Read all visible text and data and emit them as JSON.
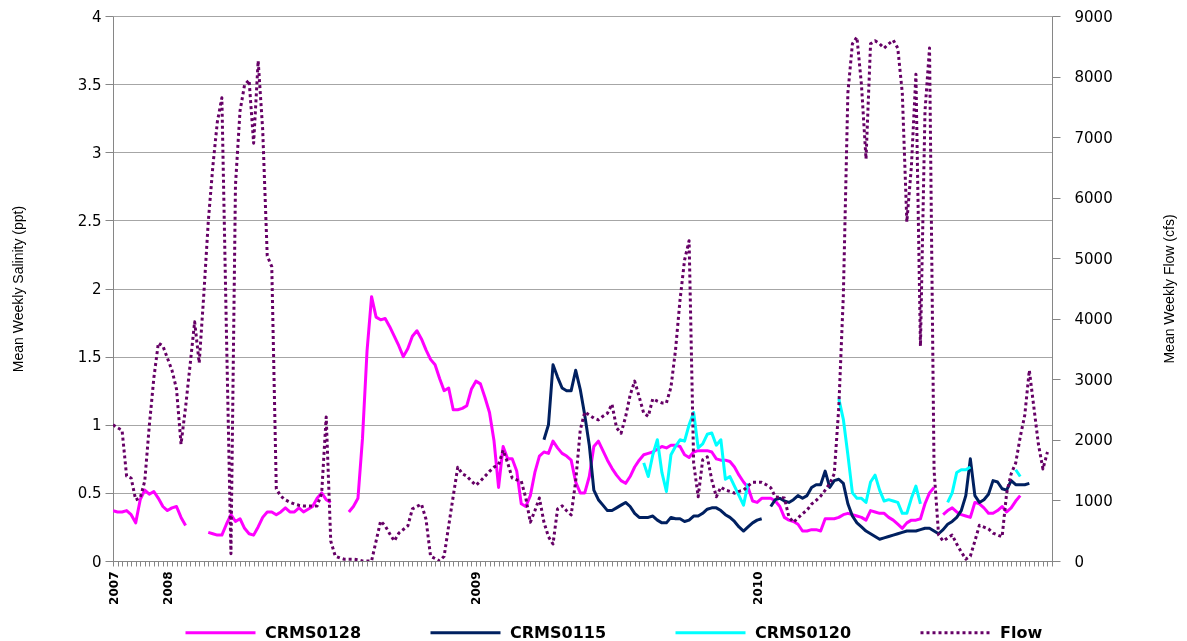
{
  "chart_data": {
    "type": "line",
    "ylabel": "Mean Weekly Salinity (ppt)",
    "y2label": "Mean Weekly Flow (cfs)",
    "categories": [
      "2007",
      null,
      null,
      null,
      null,
      null,
      null,
      null,
      null,
      null,
      null,
      null,
      "2008",
      null,
      null,
      null,
      null,
      null,
      null,
      null,
      null,
      null,
      null,
      null,
      null,
      null,
      null,
      null,
      null,
      null,
      null,
      null,
      null,
      null,
      null,
      null,
      null,
      null,
      null,
      null,
      null,
      null,
      null,
      null,
      null,
      null,
      null,
      null,
      null,
      null,
      null,
      null,
      null,
      null,
      null,
      null,
      null,
      null,
      null,
      null,
      null,
      null,
      null,
      null,
      null,
      null,
      null,
      null,
      null,
      null,
      null,
      null,
      null,
      null,
      null,
      null,
      null,
      null,
      null,
      null,
      "2009",
      null,
      null,
      null,
      null,
      null,
      null,
      null,
      null,
      null,
      null,
      null,
      null,
      null,
      null,
      null,
      null,
      null,
      null,
      null,
      null,
      null,
      null,
      null,
      null,
      null,
      null,
      null,
      null,
      null,
      null,
      null,
      null,
      null,
      null,
      null,
      null,
      null,
      null,
      null,
      null,
      null,
      null,
      null,
      null,
      null,
      null,
      null,
      null,
      null,
      null,
      null,
      null,
      null,
      null,
      null,
      null,
      null,
      null,
      null,
      null,
      null,
      "2010",
      null,
      null,
      null,
      null,
      null,
      null,
      null,
      null,
      null,
      null,
      null,
      null,
      null,
      null,
      null,
      null,
      null,
      null,
      null,
      null,
      null,
      null,
      null,
      null,
      null,
      null,
      null,
      null,
      null,
      null,
      null,
      null,
      null,
      null,
      null,
      null,
      null,
      null,
      null,
      null,
      null,
      null,
      null,
      null,
      null,
      null,
      null,
      null,
      null,
      null,
      null,
      null,
      null,
      null,
      null,
      null,
      null,
      null,
      null,
      null,
      null,
      null,
      null,
      null,
      null
    ],
    "ylim": [
      0,
      4
    ],
    "yticks": [
      0,
      0.5,
      1,
      1.5,
      2,
      2.5,
      3,
      3.5,
      4
    ],
    "y2lim": [
      0,
      9000
    ],
    "y2ticks": [
      0,
      1000,
      2000,
      3000,
      4000,
      5000,
      6000,
      7000,
      8000,
      9000
    ],
    "grid": "y",
    "legend": "bottom",
    "series": [
      {
        "name": "CRMS0128",
        "color": "#ff00ff",
        "line_style": "solid",
        "values": [
          0.37,
          0.36,
          0.36,
          0.37,
          0.34,
          0.28,
          0.45,
          0.52,
          0.49,
          0.51,
          0.46,
          0.4,
          0.37,
          0.39,
          0.4,
          0.32,
          0.26,
          null,
          null,
          null,
          null,
          0.21,
          0.2,
          0.19,
          0.19,
          0.27,
          0.34,
          0.29,
          0.31,
          0.24,
          0.2,
          0.19,
          0.25,
          0.32,
          0.36,
          0.36,
          0.34,
          0.36,
          0.39,
          0.36,
          0.36,
          0.39,
          0.36,
          0.38,
          0.4,
          0.46,
          0.5,
          0.45,
          0.43,
          null,
          null,
          null,
          0.36,
          0.4,
          0.46,
          0.9,
          1.54,
          1.94,
          1.79,
          1.77,
          1.78,
          1.72,
          1.65,
          1.58,
          1.5,
          1.56,
          1.65,
          1.69,
          1.63,
          1.55,
          1.48,
          1.44,
          1.34,
          1.25,
          1.27,
          1.11,
          1.11,
          1.12,
          1.14,
          1.26,
          1.32,
          1.3,
          1.2,
          1.09,
          0.88,
          0.54,
          0.84,
          0.75,
          0.75,
          0.66,
          0.42,
          0.4,
          0.48,
          0.65,
          0.77,
          0.8,
          0.79,
          0.88,
          0.83,
          0.79,
          0.77,
          0.74,
          0.58,
          0.5,
          0.5,
          0.62,
          0.84,
          0.88,
          0.81,
          0.74,
          0.68,
          0.63,
          0.59,
          0.57,
          0.62,
          0.69,
          0.74,
          0.78,
          0.79,
          0.8,
          0.82,
          0.84,
          0.83,
          0.85,
          0.85,
          0.84,
          0.78,
          0.76,
          0.8,
          0.81,
          0.81,
          0.81,
          0.8,
          0.75,
          0.74,
          0.74,
          0.73,
          0.69,
          0.63,
          0.58,
          0.54,
          0.44,
          0.43,
          0.46,
          0.46,
          0.46,
          0.44,
          0.4,
          0.32,
          0.3,
          0.29,
          0.27,
          0.22,
          0.22,
          0.23,
          0.23,
          0.22,
          0.31,
          0.31,
          0.31,
          0.32,
          0.34,
          0.35,
          0.34,
          0.33,
          0.32,
          0.3,
          0.37,
          0.36,
          0.35,
          0.35,
          0.32,
          0.3,
          0.27,
          0.24,
          0.28,
          0.3,
          0.3,
          0.31,
          0.42,
          0.5,
          0.54,
          null,
          0.34,
          0.37,
          0.39,
          0.36,
          0.34,
          0.33,
          0.32,
          0.43,
          0.42,
          0.39,
          0.35,
          0.35,
          0.37,
          0.4,
          0.36,
          0.39,
          0.44,
          0.48,
          null,
          null,
          null,
          null,
          null,
          null,
          null
        ]
      },
      {
        "name": "CRMS0115",
        "color": "#002060",
        "line_style": "solid",
        "values": [
          null,
          null,
          null,
          null,
          null,
          null,
          null,
          null,
          null,
          null,
          null,
          null,
          null,
          null,
          null,
          null,
          null,
          null,
          null,
          null,
          null,
          null,
          null,
          null,
          null,
          null,
          null,
          null,
          null,
          null,
          null,
          null,
          null,
          null,
          null,
          null,
          null,
          null,
          null,
          null,
          null,
          null,
          null,
          null,
          null,
          null,
          null,
          null,
          null,
          null,
          null,
          null,
          null,
          null,
          null,
          null,
          null,
          null,
          null,
          null,
          null,
          null,
          null,
          null,
          null,
          null,
          null,
          null,
          null,
          null,
          null,
          null,
          null,
          null,
          null,
          null,
          null,
          null,
          null,
          null,
          null,
          null,
          null,
          null,
          null,
          null,
          null,
          null,
          null,
          null,
          null,
          null,
          null,
          null,
          null,
          0.89,
          1.0,
          1.44,
          1.35,
          1.27,
          1.25,
          1.25,
          1.4,
          1.26,
          1.07,
          0.85,
          0.52,
          0.45,
          0.41,
          0.37,
          0.37,
          0.39,
          0.41,
          0.43,
          0.4,
          0.35,
          0.32,
          0.32,
          0.32,
          0.33,
          0.3,
          0.28,
          0.28,
          0.32,
          0.31,
          0.31,
          0.29,
          0.3,
          0.33,
          0.33,
          0.35,
          0.38,
          0.39,
          0.39,
          0.37,
          0.34,
          0.32,
          0.29,
          0.25,
          0.22,
          0.25,
          0.28,
          0.3,
          0.31,
          null,
          0.4,
          0.45,
          0.46,
          0.44,
          0.43,
          0.45,
          0.48,
          0.46,
          0.48,
          0.54,
          0.56,
          0.56,
          0.66,
          0.54,
          0.59,
          0.6,
          0.57,
          0.42,
          0.33,
          0.28,
          0.25,
          0.22,
          0.2,
          0.18,
          0.16,
          0.17,
          0.18,
          0.19,
          0.2,
          0.21,
          0.22,
          0.22,
          0.22,
          0.23,
          0.24,
          0.24,
          0.22,
          0.2,
          0.23,
          0.27,
          0.29,
          0.32,
          0.37,
          0.48,
          0.75,
          0.48,
          0.43,
          0.45,
          0.49,
          0.59,
          0.58,
          0.53,
          0.52,
          0.59,
          0.56,
          0.56,
          0.56,
          0.57,
          null,
          null,
          null,
          null,
          null
        ]
      },
      {
        "name": "CRMS0120",
        "color": "#00ffff",
        "line_style": "solid",
        "values": [
          null,
          null,
          null,
          null,
          null,
          null,
          null,
          null,
          null,
          null,
          null,
          null,
          null,
          null,
          null,
          null,
          null,
          null,
          null,
          null,
          null,
          null,
          null,
          null,
          null,
          null,
          null,
          null,
          null,
          null,
          null,
          null,
          null,
          null,
          null,
          null,
          null,
          null,
          null,
          null,
          null,
          null,
          null,
          null,
          null,
          null,
          null,
          null,
          null,
          null,
          null,
          null,
          null,
          null,
          null,
          null,
          null,
          null,
          null,
          null,
          null,
          null,
          null,
          null,
          null,
          null,
          null,
          null,
          null,
          null,
          null,
          null,
          null,
          null,
          null,
          null,
          null,
          null,
          null,
          null,
          null,
          null,
          null,
          null,
          null,
          null,
          null,
          null,
          null,
          null,
          null,
          null,
          null,
          null,
          null,
          null,
          null,
          null,
          null,
          null,
          null,
          null,
          null,
          null,
          null,
          null,
          null,
          null,
          null,
          null,
          null,
          null,
          null,
          null,
          null,
          null,
          null,
          0.72,
          0.62,
          0.78,
          0.89,
          0.65,
          0.51,
          0.78,
          0.84,
          0.89,
          0.88,
          1.0,
          1.09,
          0.83,
          0.86,
          0.93,
          0.94,
          0.85,
          0.89,
          0.6,
          0.62,
          0.55,
          0.48,
          0.41,
          0.57,
          null,
          null,
          null,
          null,
          null,
          null,
          null,
          null,
          null,
          null,
          null,
          null,
          null,
          null,
          null,
          null,
          null,
          null,
          null,
          1.19,
          1.04,
          0.78,
          0.5,
          0.46,
          0.46,
          0.43,
          0.58,
          0.63,
          0.52,
          0.44,
          0.45,
          0.44,
          0.43,
          0.35,
          0.35,
          0.46,
          0.55,
          0.42,
          null,
          null,
          null,
          null,
          null,
          0.43,
          0.5,
          0.65,
          0.67,
          0.67,
          0.69,
          null,
          null,
          null,
          null,
          null,
          null,
          null,
          null,
          null,
          0.67,
          0.62,
          null,
          null,
          null,
          null,
          null,
          null,
          null
        ]
      },
      {
        "name": "Flow",
        "color": "#660066",
        "line_style": "dotted",
        "axis": "y2",
        "values": [
          2250,
          2200,
          2160,
          1400,
          1370,
          1010,
          1040,
          1320,
          2230,
          3020,
          3600,
          3550,
          3350,
          3150,
          2840,
          1930,
          2540,
          3240,
          3950,
          3270,
          4380,
          5600,
          6510,
          7250,
          7650,
          3800,
          120,
          6210,
          7430,
          7860,
          7940,
          6900,
          8260,
          7120,
          5040,
          4860,
          1190,
          1070,
          1010,
          970,
          940,
          920,
          910,
          910,
          910,
          910,
          1120,
          2380,
          330,
          80,
          50,
          30,
          30,
          30,
          20,
          0,
          0,
          0,
          330,
          660,
          580,
          450,
          330,
          460,
          520,
          580,
          860,
          900,
          940,
          690,
          80,
          40,
          0,
          80,
          580,
          1070,
          1550,
          1440,
          1400,
          1320,
          1250,
          1320,
          1400,
          1480,
          1550,
          1590,
          1830,
          1620,
          1370,
          1340,
          1320,
          1040,
          640,
          830,
          1040,
          640,
          400,
          280,
          860,
          910,
          830,
          760,
          1320,
          2160,
          2460,
          2410,
          2360,
          2330,
          2390,
          2440,
          2590,
          2200,
          2110,
          2380,
          2740,
          2970,
          2710,
          2440,
          2390,
          2680,
          2640,
          2610,
          2610,
          2870,
          3480,
          4310,
          4970,
          5290,
          1620,
          1060,
          1670,
          1720,
          1340,
          1060,
          1220,
          1170,
          1150,
          1120,
          1150,
          1170,
          1240,
          1300,
          1300,
          1300,
          1260,
          1210,
          1060,
          1050,
          1040,
          730,
          640,
          710,
          780,
          840,
          940,
          1000,
          1070,
          1170,
          1280,
          1440,
          2540,
          4380,
          7730,
          8540,
          8650,
          7860,
          6640,
          8540,
          8590,
          8540,
          8470,
          8540,
          8600,
          8470,
          7730,
          5600,
          6510,
          8040,
          3550,
          7430,
          8470,
          1500,
          430,
          330,
          380,
          430,
          280,
          150,
          30,
          80,
          330,
          590,
          560,
          530,
          460,
          430,
          400,
          1120,
          1440,
          1620,
          2050,
          2410,
          3150,
          2540,
          1930,
          1520,
          1800,
          null
        ]
      }
    ]
  }
}
